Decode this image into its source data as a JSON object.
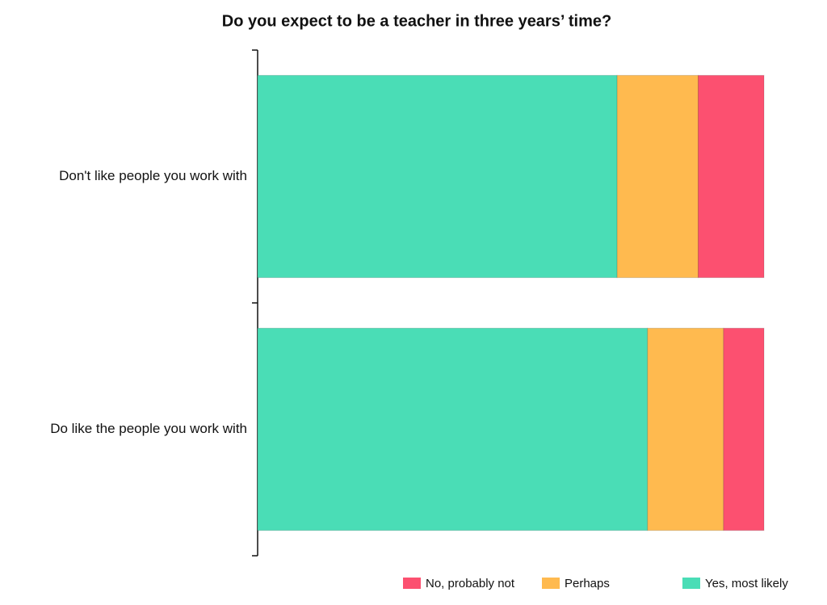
{
  "chart_data": {
    "type": "stacked-barh",
    "title": "Do you expect to be a teacher in three years’ time?",
    "categories": [
      "Don't like people you work with",
      "Do like the people you work with"
    ],
    "xlim": [
      0,
      100
    ],
    "series": [
      {
        "name": "Yes, most likely",
        "color": "#4addb6",
        "values": [
          71,
          77
        ]
      },
      {
        "name": "Perhaps",
        "color": "#ffba4f",
        "values": [
          16,
          15
        ]
      },
      {
        "name": "No, probably not",
        "color": "#fc5070",
        "values": [
          13,
          8
        ]
      }
    ]
  }
}
